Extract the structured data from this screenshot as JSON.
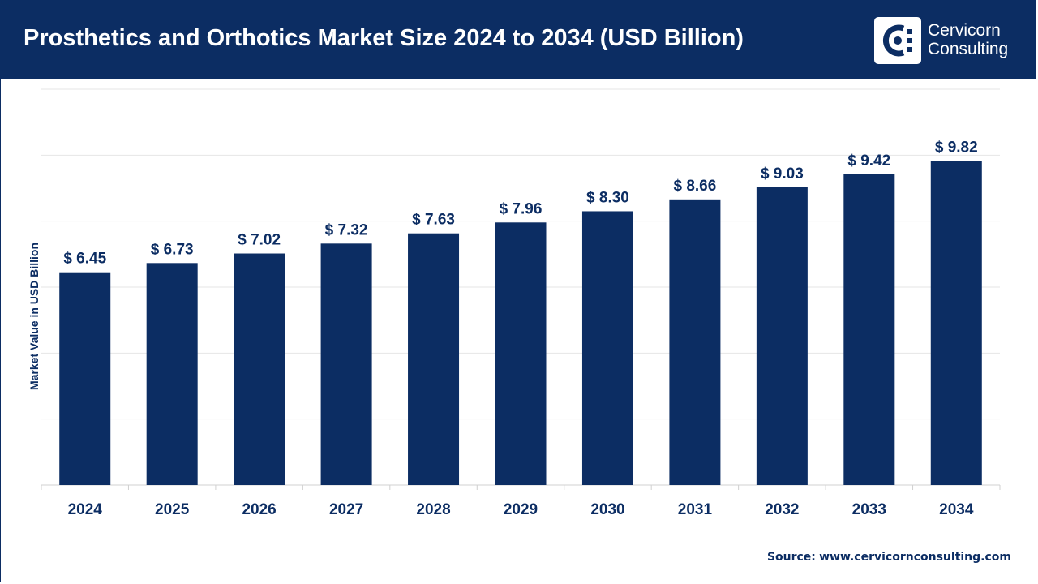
{
  "brand": {
    "name_line1": "Cervicorn",
    "name_line2": "Consulting",
    "logo_icon": "cervicorn-logo-icon"
  },
  "colors": {
    "header_bg": "#0c2d63",
    "bar": "#0c2d63",
    "grid": "#e6e6e6",
    "text": "#0c2d63"
  },
  "source": {
    "label": "Source:",
    "text": "www.cervicornconsulting.com"
  },
  "chart_data": {
    "type": "bar",
    "title": "Prosthetics and Orthotics Market Size 2024 to 2034 (USD Billion)",
    "ylabel": "Market Value in USD Billion",
    "xlabel": "",
    "categories": [
      "2024",
      "2025",
      "2026",
      "2027",
      "2028",
      "2029",
      "2030",
      "2031",
      "2032",
      "2033",
      "2034"
    ],
    "values": [
      6.45,
      6.73,
      7.02,
      7.32,
      7.63,
      7.96,
      8.3,
      8.66,
      9.03,
      9.42,
      9.82
    ],
    "data_labels": [
      "$ 6.45",
      "$ 6.73",
      "$ 7.02",
      "$ 7.32",
      "$ 7.63",
      "$ 7.96",
      "$ 8.30",
      "$ 8.66",
      "$ 9.03",
      "$ 9.42",
      "$ 9.82"
    ],
    "ylim": [
      0,
      12
    ],
    "grid": true,
    "legend": "none"
  }
}
